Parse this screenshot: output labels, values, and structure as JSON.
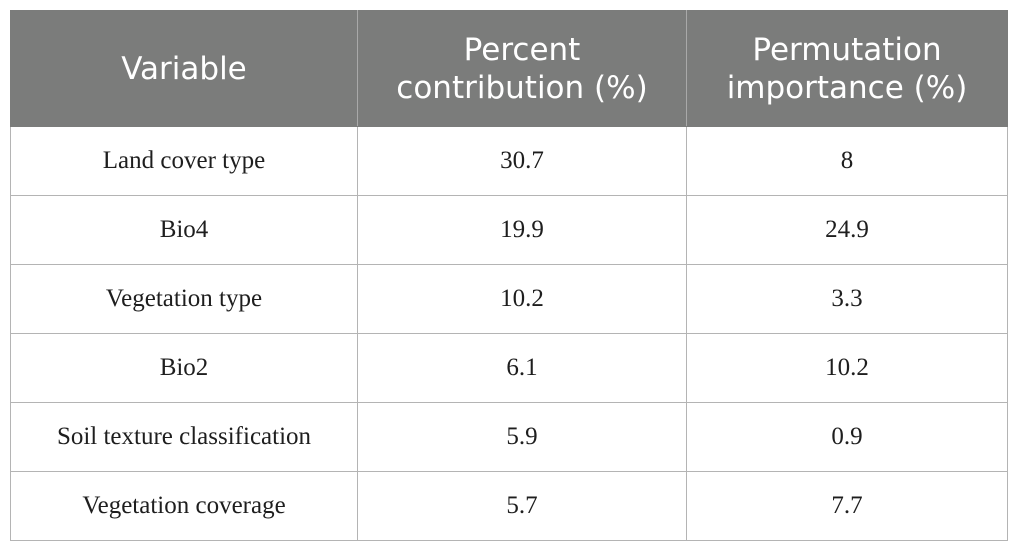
{
  "table": {
    "headers": [
      [
        "Variable"
      ],
      [
        "Percent",
        "contribution (%)"
      ],
      [
        "Permutation",
        "importance (%)"
      ]
    ],
    "rows": [
      [
        "Land cover type",
        "30.7",
        "8"
      ],
      [
        "Bio4",
        "19.9",
        "24.9"
      ],
      [
        "Vegetation type",
        "10.2",
        "3.3"
      ],
      [
        "Bio2",
        "6.1",
        "10.2"
      ],
      [
        "Soil texture classification",
        "5.9",
        "0.9"
      ],
      [
        "Vegetation coverage",
        "5.7",
        "7.7"
      ]
    ]
  }
}
